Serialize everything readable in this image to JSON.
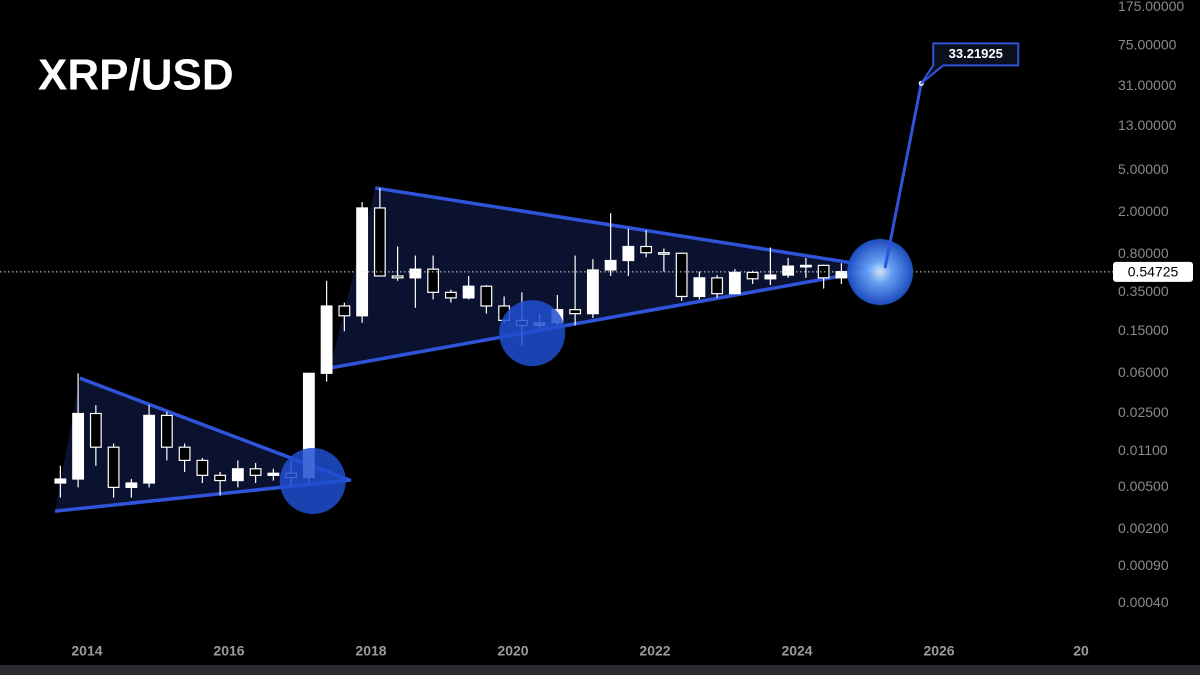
{
  "chart_data": {
    "type": "candlestick",
    "title": "XRP/USD",
    "log_scale": true,
    "grid": false,
    "candle_color": "#ffffff",
    "pattern_color": "#2f54d9",
    "x": [
      2013.625,
      2013.875,
      2014.125,
      2014.375,
      2014.625,
      2014.875,
      2015.125,
      2015.375,
      2015.625,
      2015.875,
      2016.125,
      2016.375,
      2016.625,
      2016.875,
      2017.125,
      2017.375,
      2017.625,
      2017.875,
      2018.125,
      2018.375,
      2018.625,
      2018.875,
      2019.125,
      2019.375,
      2019.625,
      2019.875,
      2020.125,
      2020.375,
      2020.625,
      2020.875,
      2021.125,
      2021.375,
      2021.625,
      2021.875,
      2022.125,
      2022.375,
      2022.625,
      2022.875,
      2023.125,
      2023.375,
      2023.625,
      2023.875,
      2024.125,
      2024.375,
      2024.625
    ],
    "open": [
      0.0055,
      0.006,
      0.025,
      0.012,
      0.005,
      0.0055,
      0.024,
      0.012,
      0.009,
      0.0065,
      0.0058,
      0.0075,
      0.0065,
      0.0068,
      0.0062,
      0.06,
      0.26,
      0.21,
      2.2,
      0.5,
      0.48,
      0.58,
      0.35,
      0.31,
      0.4,
      0.26,
      0.19,
      0.17,
      0.18,
      0.24,
      0.22,
      0.57,
      0.7,
      0.95,
      0.83,
      0.82,
      0.32,
      0.48,
      0.34,
      0.54,
      0.47,
      0.51,
      0.62,
      0.63,
      0.48
    ],
    "high": [
      0.008,
      0.06,
      0.03,
      0.013,
      0.006,
      0.03,
      0.026,
      0.013,
      0.0095,
      0.007,
      0.009,
      0.0085,
      0.0075,
      0.009,
      0.06,
      0.45,
      0.28,
      2.5,
      3.4,
      0.95,
      0.78,
      0.78,
      0.37,
      0.5,
      0.41,
      0.32,
      0.35,
      0.22,
      0.33,
      0.78,
      0.72,
      1.96,
      1.4,
      1.35,
      0.91,
      0.83,
      0.55,
      0.51,
      0.58,
      0.56,
      0.93,
      0.74,
      0.74,
      0.64,
      0.66
    ],
    "low": [
      0.004,
      0.005,
      0.008,
      0.004,
      0.004,
      0.005,
      0.009,
      0.007,
      0.0055,
      0.0042,
      0.005,
      0.0055,
      0.0058,
      0.0052,
      0.0055,
      0.05,
      0.15,
      0.18,
      0.5,
      0.45,
      0.25,
      0.3,
      0.28,
      0.3,
      0.22,
      0.18,
      0.11,
      0.16,
      0.17,
      0.17,
      0.2,
      0.5,
      0.5,
      0.75,
      0.55,
      0.29,
      0.3,
      0.31,
      0.34,
      0.42,
      0.41,
      0.48,
      0.48,
      0.38,
      0.42
    ],
    "close": [
      0.006,
      0.025,
      0.012,
      0.005,
      0.0055,
      0.024,
      0.012,
      0.009,
      0.0065,
      0.0058,
      0.0075,
      0.0065,
      0.0068,
      0.0062,
      0.06,
      0.26,
      0.21,
      2.2,
      0.5,
      0.48,
      0.58,
      0.35,
      0.31,
      0.4,
      0.26,
      0.19,
      0.17,
      0.18,
      0.24,
      0.22,
      0.57,
      0.7,
      0.95,
      0.83,
      0.82,
      0.32,
      0.48,
      0.34,
      0.54,
      0.47,
      0.51,
      0.62,
      0.63,
      0.48,
      0.55
    ],
    "triangles": [
      {
        "x": [
          2013.9,
          2017.7,
          2013.55
        ],
        "y": [
          0.054,
          0.00586,
          0.00298
        ]
      },
      {
        "x": [
          2018.06,
          2025.24,
          2017.42
        ],
        "y": [
          3.4,
          0.594,
          0.0673
        ]
      }
    ],
    "highlights": {
      "x": [
        2017.18,
        2020.27,
        2025.17
      ],
      "y": [
        0.00574,
        0.144,
        0.545
      ]
    },
    "projection": {
      "x": [
        2025.24,
        2025.75
      ],
      "y": [
        0.594,
        33.21925
      ]
    },
    "last_price": 0.54725,
    "xlim": [
      2012.775,
      2028.408
    ],
    "xticks": [
      2014,
      2016,
      2018,
      2020,
      2022,
      2024,
      2026,
      {
        "value": 2028,
        "label": "20"
      }
    ],
    "ylim": [
      0.00018,
      204
    ],
    "yticks": [
      {
        "value": 175,
        "label": "175.00000"
      },
      {
        "value": 75,
        "label": "75.00000"
      },
      {
        "value": 31,
        "label": "31.00000"
      },
      {
        "value": 13,
        "label": "13.00000"
      },
      {
        "value": 5,
        "label": "5.00000"
      },
      {
        "value": 2,
        "label": "2.00000"
      },
      {
        "value": 0.8,
        "label": "0.80000"
      },
      {
        "value": 0.35,
        "label": "0.35000"
      },
      {
        "value": 0.15,
        "label": "0.15000"
      },
      {
        "value": 0.06,
        "label": "0.06000"
      },
      {
        "value": 0.025,
        "label": "0.02500"
      },
      {
        "value": 0.011,
        "label": "0.01100"
      },
      {
        "value": 0.005,
        "label": "0.00500"
      },
      {
        "value": 0.002,
        "label": "0.00200"
      },
      {
        "value": 0.0009,
        "label": "0.00090"
      },
      {
        "value": 0.0004,
        "label": "0.00040"
      }
    ]
  }
}
